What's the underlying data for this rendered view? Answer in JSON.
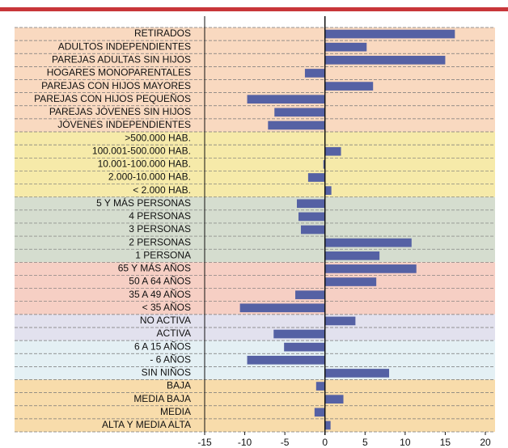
{
  "chart_data": {
    "type": "barh",
    "categories": [
      "RETIRADOS",
      "ADULTOS INDEPENDIENTES",
      "PAREJAS ADULTAS SIN HIJOS",
      "HOGARES MONOPARENTALES",
      "PAREJAS CON HIJOS MAYORES",
      "PAREJAS CON HIJOS PEQUEÑOS",
      "PAREJAS JÓVENES SIN HIJOS",
      "JÓVENES INDEPENDIENTES",
      ">500.000 HAB.",
      "100.001-500.000 HAB.",
      "10.001-100.000 HAB.",
      "2.000-10.000 HAB.",
      "< 2.000 HAB.",
      "5 Y MÁS PERSONAS",
      "4 PERSONAS",
      "3 PERSONAS",
      "2 PERSONAS",
      "1 PERSONA",
      "65 Y MÁS AÑOS",
      "50 A 64 AÑOS",
      "35 A 49 AÑOS",
      "< 35 AÑOS",
      "NO ACTIVA",
      "ACTIVA",
      "6 A 15 AÑOS",
      "- 6 AÑOS",
      "SIN NIÑOS",
      "BAJA",
      "MEDIA BAJA",
      "MEDIA",
      "ALTA Y MEDIA ALTA"
    ],
    "values": [
      16.2,
      5.2,
      15.0,
      -2.5,
      6.0,
      -9.7,
      -6.3,
      -7.1,
      0,
      2.0,
      -0.2,
      -2.1,
      0.8,
      -3.5,
      -3.3,
      -3.0,
      10.8,
      6.8,
      11.4,
      6.4,
      -3.7,
      -10.6,
      3.8,
      -6.4,
      -5.1,
      -9.7,
      8.0,
      -1.1,
      2.3,
      -1.3,
      0.7
    ],
    "color": "#5561a4",
    "xlim": [
      -15,
      20
    ],
    "xticks": [
      -15,
      -10,
      -5,
      0,
      5,
      10,
      15,
      20
    ],
    "grid": true
  }
}
